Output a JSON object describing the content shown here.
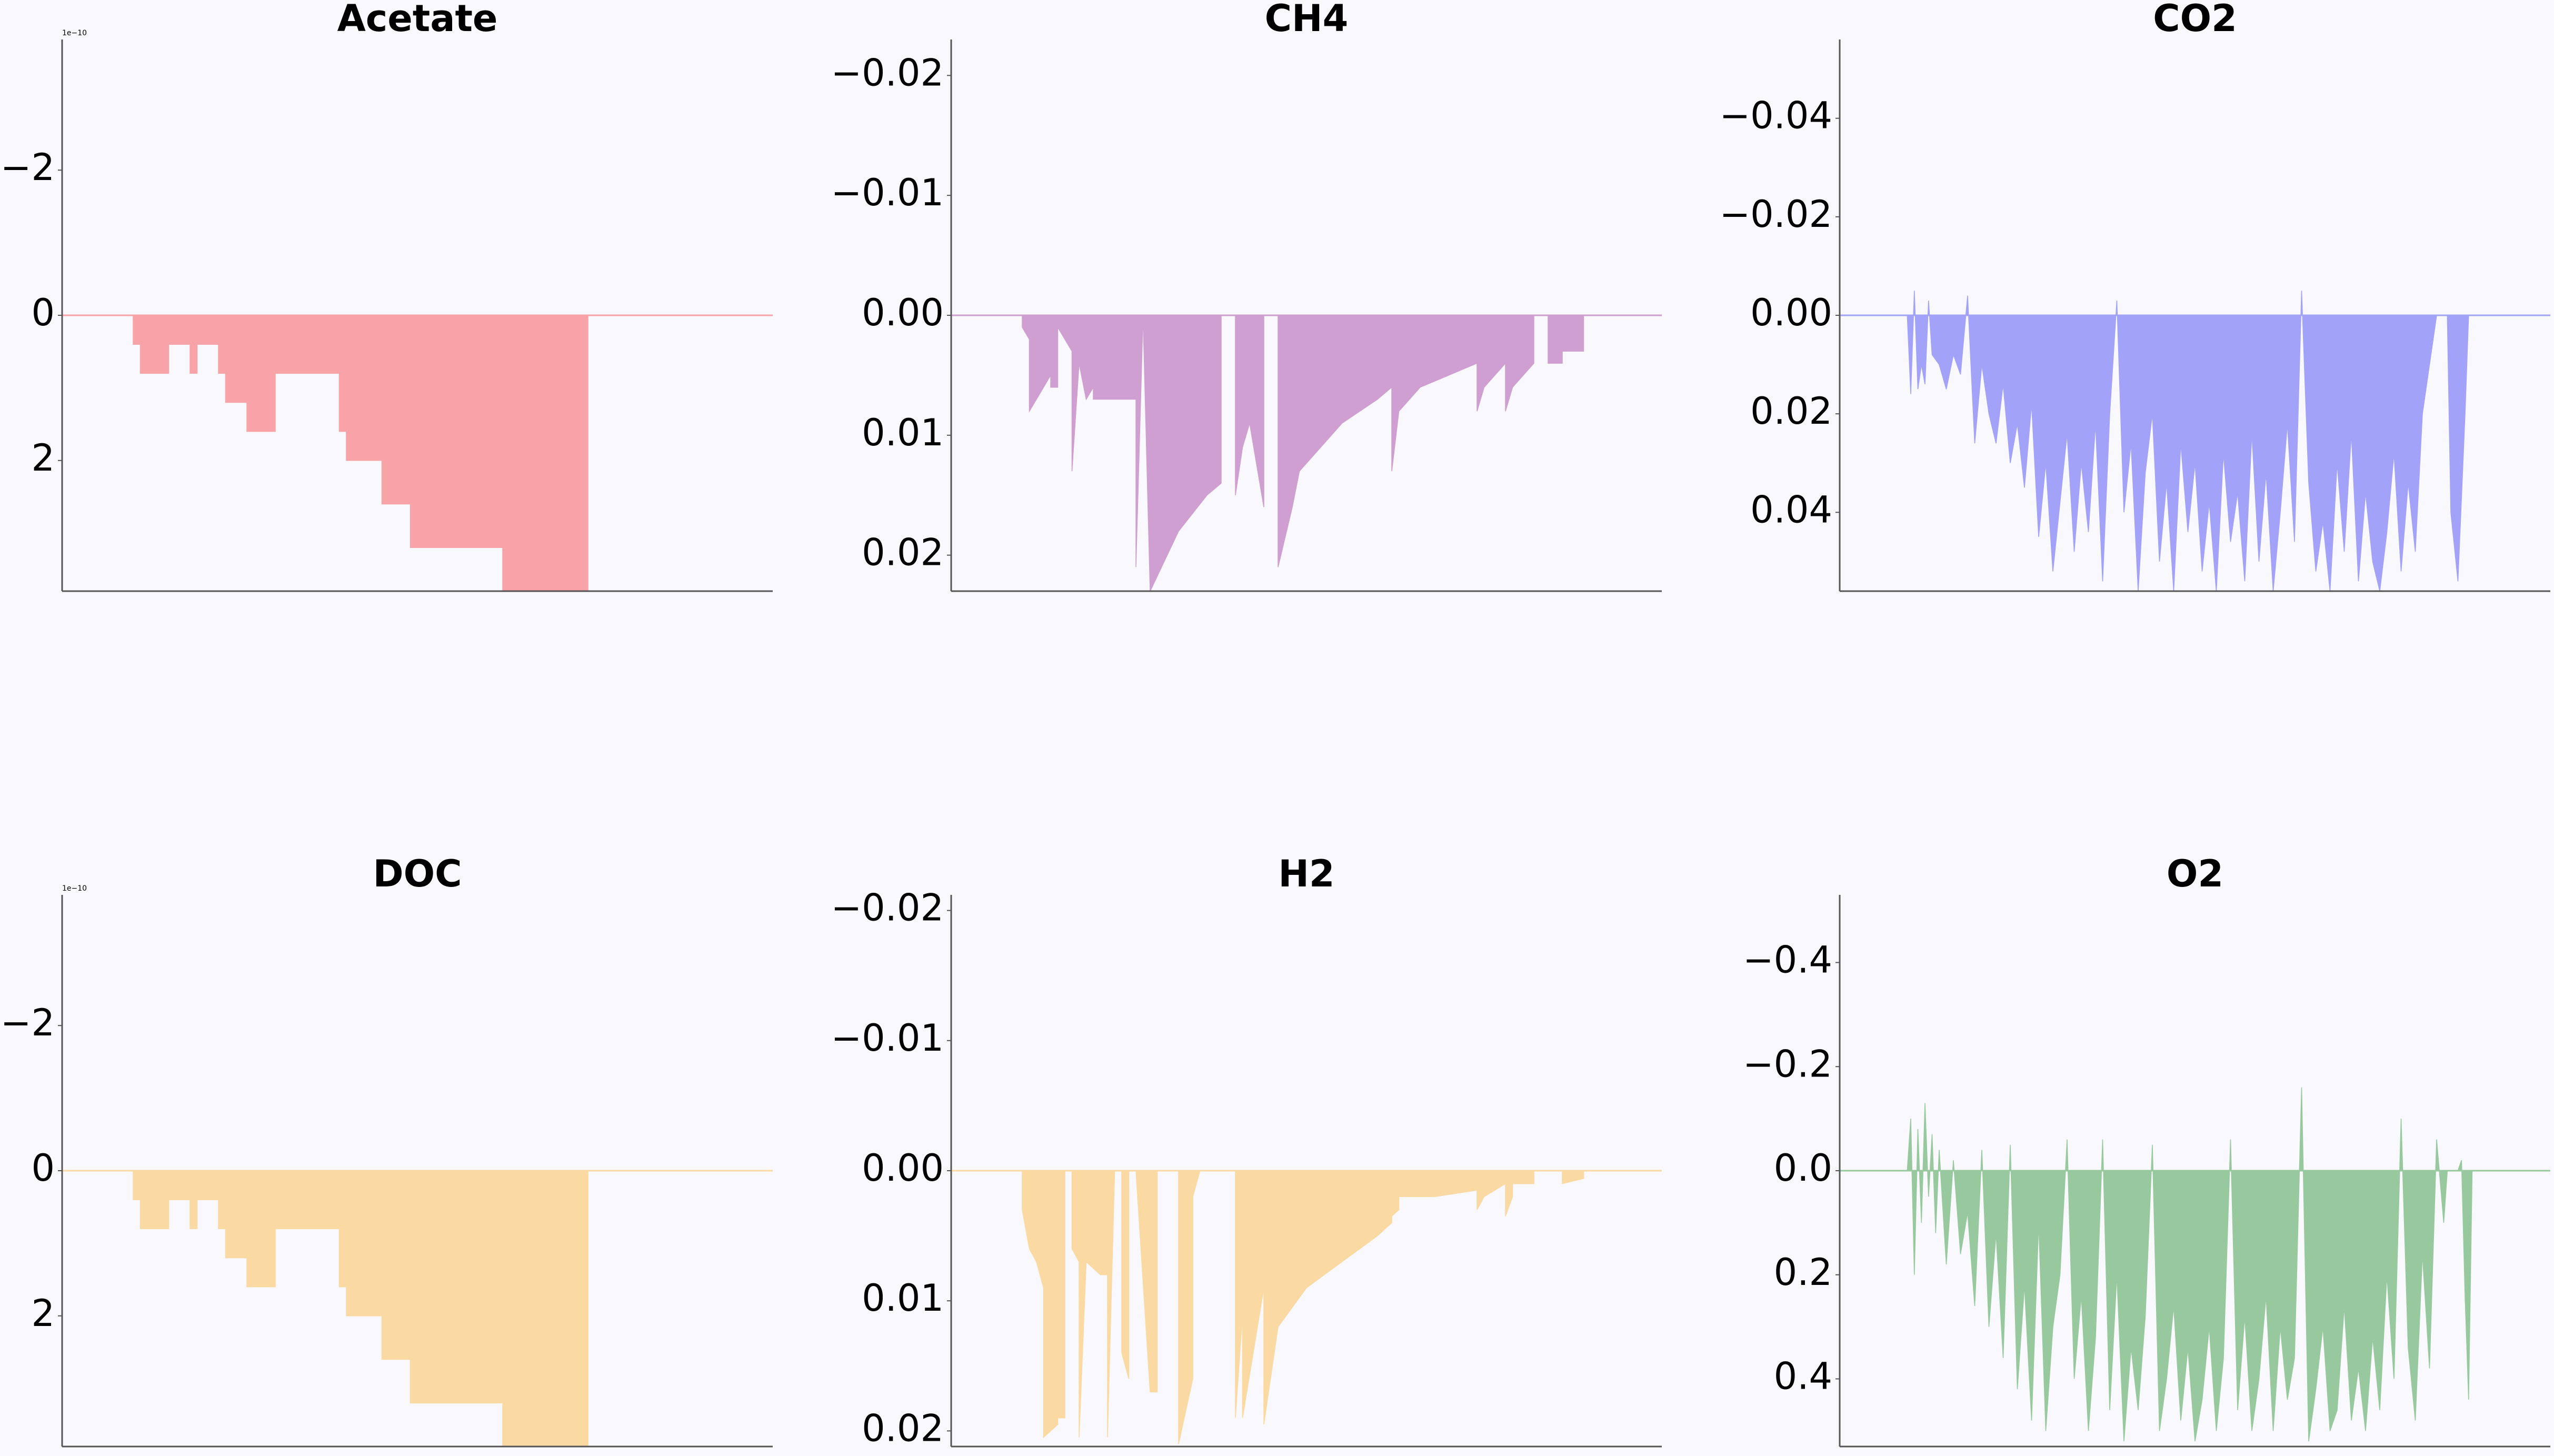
{
  "chart_data": [
    {
      "type": "area",
      "title": "Acetate",
      "color": "#f8a3a8",
      "axis_offset": "1e−10",
      "y_inverted": true,
      "ylim": [
        3.8,
        -3.8
      ],
      "yticks": [
        -2,
        0,
        2
      ],
      "ytick_labels": [
        "−2",
        "0",
        "2"
      ],
      "x": [
        0,
        10,
        10,
        11,
        11,
        15,
        15,
        18,
        18,
        19,
        19,
        22,
        22,
        23,
        23,
        26,
        26,
        27,
        27,
        30,
        30,
        39,
        39,
        40,
        40,
        45,
        45,
        48,
        48,
        49,
        49,
        61,
        61,
        62,
        62,
        74,
        74,
        100
      ],
      "values": [
        0,
        0,
        0.4,
        0.4,
        0.8,
        0.8,
        0.4,
        0.4,
        0.8,
        0.8,
        0.4,
        0.4,
        0.8,
        0.8,
        1.2,
        1.2,
        1.6,
        1.6,
        1.6,
        1.6,
        0.8,
        0.8,
        1.6,
        1.6,
        2.0,
        2.0,
        2.6,
        2.6,
        2.6,
        2.6,
        3.2,
        3.2,
        3.2,
        3.2,
        3.8,
        3.8,
        0,
        0
      ]
    },
    {
      "type": "area",
      "title": "CH4",
      "color": "#cf9fd2",
      "y_inverted": true,
      "ylim": [
        0.023,
        -0.023
      ],
      "yticks": [
        -0.02,
        -0.01,
        0.0,
        0.01,
        0.02
      ],
      "ytick_labels": [
        "−0.02",
        "−0.01",
        "0.00",
        "0.01",
        "0.02"
      ],
      "x": [
        0,
        10,
        10,
        11,
        11,
        14,
        14,
        15,
        15,
        17,
        17,
        18,
        18,
        19,
        19,
        20,
        20,
        26,
        26,
        27,
        27,
        28,
        28,
        32,
        36,
        38,
        38,
        40,
        40,
        41,
        41,
        42,
        42,
        44,
        44,
        46,
        46,
        48,
        48,
        49,
        55,
        60,
        62,
        62,
        63,
        63,
        66,
        70,
        74,
        74,
        75,
        75,
        78,
        78,
        79,
        79,
        82,
        82,
        84,
        84,
        86,
        86,
        89,
        89,
        100
      ],
      "values": [
        0,
        0,
        0.001,
        0.002,
        0.008,
        0.005,
        0.006,
        0.006,
        0.001,
        0.003,
        0.013,
        0.004,
        0.004,
        0.007,
        0.007,
        0.006,
        0.007,
        0.007,
        0.021,
        0.0,
        0.0,
        0.023,
        0.023,
        0.018,
        0.015,
        0.014,
        0.0,
        0.0,
        0.015,
        0.011,
        0.011,
        0.009,
        0.009,
        0.016,
        0.0,
        0.0,
        0.021,
        0.016,
        0.016,
        0.013,
        0.009,
        0.007,
        0.006,
        0.013,
        0.008,
        0.008,
        0.006,
        0.005,
        0.004,
        0.008,
        0.006,
        0.006,
        0.004,
        0.008,
        0.006,
        0.006,
        0.004,
        0.0,
        0.0,
        0.004,
        0.004,
        0.003,
        0.003,
        0,
        0
      ]
    },
    {
      "type": "area",
      "title": "CO2",
      "color": "#a2a2f8",
      "y_inverted": true,
      "ylim": [
        0.056,
        -0.056
      ],
      "yticks": [
        -0.04,
        -0.02,
        0.0,
        0.02,
        0.04
      ],
      "ytick_labels": [
        "−0.04",
        "−0.02",
        "0.00",
        "0.02",
        "0.04"
      ],
      "x": [
        0,
        9.5,
        10,
        10.5,
        11,
        11.5,
        12,
        12.5,
        13,
        14,
        15,
        16,
        17,
        18,
        19,
        20,
        21,
        22,
        23,
        24,
        25,
        26,
        27,
        28,
        29,
        30,
        31,
        32,
        33,
        34,
        35,
        36,
        37,
        38,
        39,
        40,
        41,
        42,
        43,
        44,
        45,
        46,
        47,
        48,
        49,
        50,
        51,
        52,
        53,
        54,
        55,
        56,
        57,
        58,
        59,
        60,
        61,
        62,
        63,
        64,
        65,
        66,
        67,
        68,
        69,
        70,
        71,
        72,
        73,
        74,
        75,
        76,
        77,
        78,
        79,
        80,
        81,
        82,
        83,
        84,
        85,
        85.5,
        86,
        87,
        88,
        88.5,
        89,
        100
      ],
      "values": [
        0,
        0,
        0.016,
        -0.005,
        0.015,
        0.01,
        0.014,
        -0.003,
        0.008,
        0.01,
        0.015,
        0.008,
        0.012,
        -0.004,
        0.026,
        0.01,
        0.02,
        0.026,
        0.014,
        0.03,
        0.022,
        0.035,
        0.018,
        0.045,
        0.03,
        0.052,
        0.038,
        0.024,
        0.048,
        0.03,
        0.044,
        0.022,
        0.054,
        0.02,
        -0.003,
        0.04,
        0.026,
        0.056,
        0.032,
        0.02,
        0.05,
        0.034,
        0.056,
        0.026,
        0.044,
        0.03,
        0.052,
        0.038,
        0.056,
        0.028,
        0.046,
        0.036,
        0.054,
        0.024,
        0.05,
        0.032,
        0.056,
        0.04,
        0.022,
        0.046,
        -0.005,
        0.034,
        0.052,
        0.042,
        0.056,
        0.03,
        0.048,
        0.024,
        0.054,
        0.036,
        0.05,
        0.056,
        0.044,
        0.028,
        0.052,
        0.034,
        0.048,
        0.02,
        0.01,
        0.0,
        0.0,
        0.0,
        0.04,
        0.054,
        0.02,
        0.0,
        0.0,
        0
      ]
    },
    {
      "type": "area",
      "title": "DOC",
      "color": "#fad9a3",
      "axis_offset": "1e−10",
      "y_inverted": true,
      "ylim": [
        3.8,
        -3.8
      ],
      "yticks": [
        -2,
        0,
        2
      ],
      "ytick_labels": [
        "−2",
        "0",
        "2"
      ],
      "x": [
        0,
        10,
        10,
        11,
        11,
        15,
        15,
        18,
        18,
        19,
        19,
        22,
        22,
        23,
        23,
        26,
        26,
        27,
        27,
        30,
        30,
        39,
        39,
        40,
        40,
        45,
        45,
        48,
        48,
        49,
        49,
        61,
        61,
        62,
        62,
        74,
        74,
        100
      ],
      "values": [
        0,
        0,
        0.4,
        0.4,
        0.8,
        0.8,
        0.4,
        0.4,
        0.8,
        0.8,
        0.4,
        0.4,
        0.8,
        0.8,
        1.2,
        1.2,
        1.6,
        1.6,
        1.6,
        1.6,
        0.8,
        0.8,
        1.6,
        1.6,
        2.0,
        2.0,
        2.6,
        2.6,
        2.6,
        2.6,
        3.2,
        3.2,
        3.2,
        3.2,
        3.8,
        3.8,
        0,
        0
      ]
    },
    {
      "type": "area",
      "title": "H2",
      "color": "#fad9a3",
      "y_inverted": true,
      "ylim": [
        0.0212,
        -0.0212
      ],
      "yticks": [
        -0.02,
        -0.01,
        0.0,
        0.01,
        0.02
      ],
      "ytick_labels": [
        "−0.02",
        "−0.01",
        "0.00",
        "0.01",
        "0.02"
      ],
      "x": [
        0,
        10,
        10,
        11,
        12,
        13,
        13,
        15,
        15,
        16,
        16,
        17,
        17,
        18,
        18,
        19,
        19,
        20,
        21,
        22,
        22,
        23,
        23,
        24,
        24,
        25,
        25,
        26,
        28,
        29,
        29,
        32,
        32,
        34,
        34,
        35,
        36,
        37,
        38,
        38,
        40,
        40,
        41,
        41,
        44,
        44,
        46,
        50,
        55,
        60,
        62,
        62,
        63,
        63,
        68,
        74,
        74,
        75,
        75,
        78,
        78,
        79,
        79,
        82,
        82,
        86,
        86,
        89,
        89,
        100
      ],
      "values": [
        0,
        0,
        0.003,
        0.006,
        0.007,
        0.009,
        0.0205,
        0.0195,
        0.019,
        0.019,
        0.0,
        0.0,
        0.006,
        0.007,
        0.0205,
        0.007,
        0.007,
        0.0075,
        0.008,
        0.008,
        0.0205,
        0.0,
        0.0,
        0.0,
        0.014,
        0.016,
        0.0,
        0.0,
        0.017,
        0.017,
        0.0,
        0.0,
        0.021,
        0.016,
        0.002,
        0.0,
        0.0,
        0.0,
        0.0,
        0.0,
        0.0,
        0.019,
        0.011,
        0.019,
        0.009,
        0.0195,
        0.012,
        0.009,
        0.007,
        0.005,
        0.004,
        0.0035,
        0.003,
        0.002,
        0.002,
        0.0015,
        0.003,
        0.002,
        0.002,
        0.001,
        0.0035,
        0.002,
        0.001,
        0.001,
        0.0,
        0.0,
        0.001,
        0.0006,
        0.0,
        0
      ]
    },
    {
      "type": "area",
      "title": "O2",
      "color": "#98c99e",
      "y_inverted": true,
      "ylim": [
        0.53,
        -0.53
      ],
      "yticks": [
        -0.4,
        -0.2,
        0.0,
        0.2,
        0.4
      ],
      "ytick_labels": [
        "−0.4",
        "−0.2",
        "0.0",
        "0.2",
        "0.4"
      ],
      "x": [
        0,
        9.5,
        10,
        10.5,
        11,
        11.5,
        12,
        12.5,
        13,
        13.5,
        14,
        15,
        16,
        17,
        18,
        19,
        20,
        21,
        22,
        23,
        24,
        25,
        26,
        27,
        28,
        29,
        30,
        31,
        32,
        33,
        34,
        35,
        36,
        37,
        38,
        39,
        40,
        41,
        42,
        43,
        44,
        45,
        46,
        47,
        48,
        49,
        50,
        51,
        52,
        53,
        54,
        55,
        56,
        57,
        58,
        59,
        60,
        61,
        62,
        63,
        64,
        65,
        66,
        67,
        68,
        69,
        70,
        71,
        72,
        73,
        74,
        75,
        76,
        77,
        78,
        79,
        80,
        81,
        82,
        83,
        84,
        85,
        85.5,
        86,
        86.5,
        87,
        87.5,
        88,
        88.5,
        89,
        100
      ],
      "values": [
        0,
        0,
        -0.1,
        0.2,
        -0.08,
        0.1,
        -0.13,
        0.05,
        -0.07,
        0.12,
        -0.04,
        0.18,
        -0.02,
        0.16,
        0.08,
        0.26,
        -0.04,
        0.3,
        0.12,
        0.36,
        -0.05,
        0.42,
        0.22,
        0.48,
        0.1,
        0.5,
        0.3,
        0.2,
        -0.06,
        0.4,
        0.24,
        0.5,
        0.32,
        -0.06,
        0.46,
        0.2,
        0.52,
        0.34,
        0.46,
        0.28,
        -0.05,
        0.5,
        0.4,
        0.26,
        0.48,
        0.34,
        0.52,
        0.44,
        0.3,
        0.5,
        0.36,
        -0.06,
        0.46,
        0.28,
        0.5,
        0.4,
        0.24,
        0.5,
        0.3,
        0.44,
        0.36,
        -0.16,
        0.52,
        0.42,
        0.3,
        0.5,
        0.46,
        0.26,
        0.48,
        0.38,
        0.5,
        0.32,
        0.46,
        0.2,
        0.4,
        -0.1,
        0.34,
        0.48,
        0.16,
        0.38,
        -0.06,
        0.1,
        0.0,
        0.0,
        0.0,
        0.0,
        -0.02,
        0.24,
        0.44,
        0.0,
        0
      ]
    }
  ]
}
